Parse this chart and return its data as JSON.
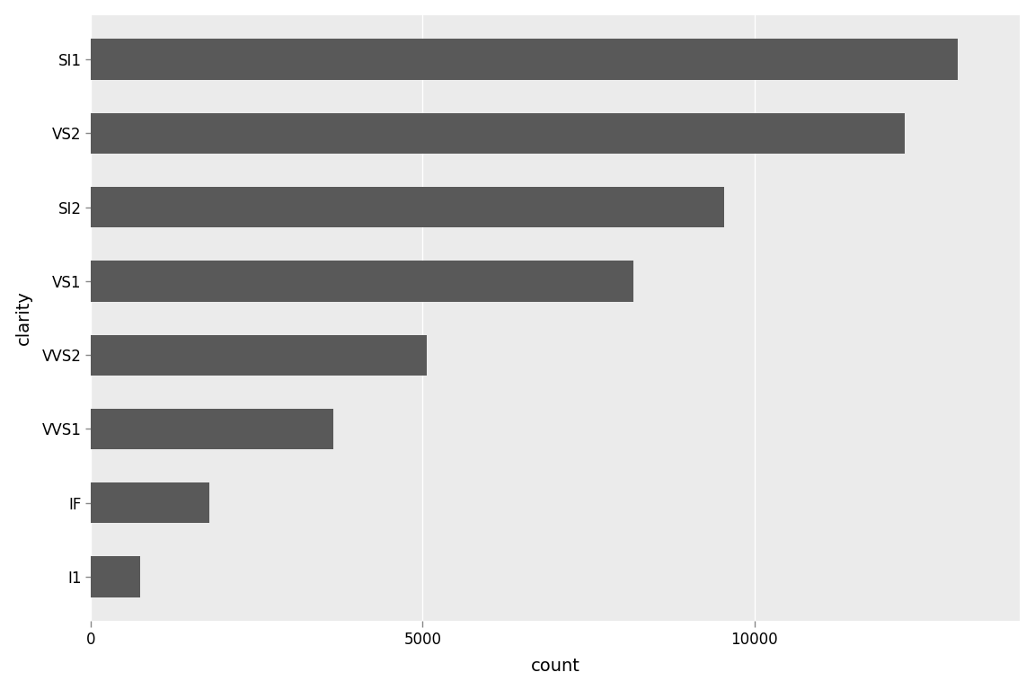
{
  "categories": [
    "SI1",
    "VS2",
    "SI2",
    "VS1",
    "VVS2",
    "VVS1",
    "IF",
    "I1"
  ],
  "counts": [
    13065,
    12258,
    9542,
    8171,
    5066,
    3655,
    1790,
    741
  ],
  "bar_color": "#595959",
  "figure_background": "#FFFFFF",
  "panel_background": "#EBEBEB",
  "grid_color": "#FFFFFF",
  "xlabel": "count",
  "ylabel": "clarity",
  "xlabel_fontsize": 14,
  "ylabel_fontsize": 14,
  "tick_fontsize": 12,
  "xlim_max": 14000,
  "xticks": [
    0,
    5000,
    10000
  ],
  "bar_height": 0.55
}
